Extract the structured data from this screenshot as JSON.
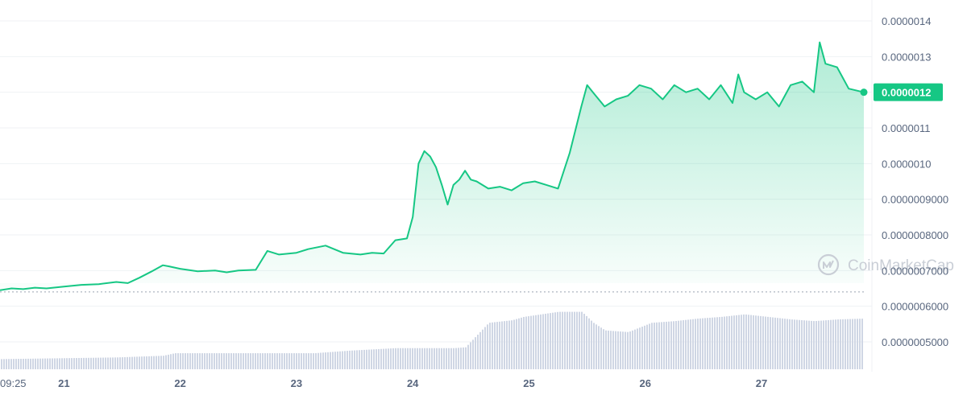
{
  "watermark": {
    "text": "CoinMarketCap",
    "icon": "coinmarketcap-logo-icon"
  },
  "colors": {
    "line": "#16c784",
    "area_top": "#16c784",
    "volume": "#cfd6e4",
    "grid": "#eff2f5",
    "axis_text": "#58667e",
    "badge_bg": "#16c784",
    "badge_text": "#ffffff",
    "reference_line": "#9aa3b2"
  },
  "chart_data": {
    "type": "line",
    "title": "",
    "xlabel": "",
    "ylabel": "",
    "grid": true,
    "y_axis": {
      "position": "right",
      "ticks": [
        "0.0000014",
        "0.0000013",
        "0.0000012",
        "0.0000011",
        "0.0000010",
        "0.0000009000",
        "0.0000008000",
        "0.0000007000",
        "0.0000006000",
        "0.0000005000"
      ],
      "tick_values": [
        1.4e-06,
        1.3e-06,
        1.2e-06,
        1.1e-06,
        1e-06,
        9e-07,
        8e-07,
        7e-07,
        6e-07,
        5e-07
      ],
      "ylim": [
        4.55e-07,
        1.43e-06
      ]
    },
    "x_axis": {
      "ticks": [
        "09:25",
        "21",
        "22",
        "23",
        "24",
        "25",
        "26",
        "27"
      ],
      "tick_positions_day": [
        20.0,
        20.55,
        21.55,
        22.55,
        23.55,
        24.55,
        25.55,
        26.55
      ],
      "xlim": [
        20.0,
        27.43
      ]
    },
    "current_price": {
      "label": "0.0000012",
      "value": 1.2e-06
    },
    "reference_line_value": 6.4e-07,
    "series": [
      {
        "type": "line",
        "x_day": [
          20.0,
          20.1,
          20.2,
          20.3,
          20.4,
          20.55,
          20.7,
          20.85,
          21.0,
          21.1,
          21.2,
          21.3,
          21.4,
          21.45,
          21.55,
          21.7,
          21.85,
          21.95,
          22.05,
          22.2,
          22.3,
          22.4,
          22.55,
          22.65,
          22.8,
          22.95,
          23.1,
          23.2,
          23.3,
          23.4,
          23.5,
          23.55,
          23.6,
          23.65,
          23.7,
          23.75,
          23.8,
          23.85,
          23.9,
          23.95,
          24.0,
          24.05,
          24.1,
          24.2,
          24.3,
          24.4,
          24.5,
          24.6,
          24.7,
          24.8,
          24.9,
          25.0,
          25.05,
          25.1,
          25.2,
          25.3,
          25.4,
          25.5,
          25.6,
          25.7,
          25.8,
          25.9,
          26.0,
          26.1,
          26.2,
          26.3,
          26.35,
          26.4,
          26.5,
          26.6,
          26.7,
          26.75,
          26.8,
          26.9,
          27.0,
          27.05,
          27.1,
          27.2,
          27.3,
          27.43
        ],
        "values": [
          6.45e-07,
          6.5e-07,
          6.48e-07,
          6.52e-07,
          6.5e-07,
          6.55e-07,
          6.6e-07,
          6.62e-07,
          6.68e-07,
          6.65e-07,
          6.8e-07,
          6.97e-07,
          7.15e-07,
          7.12e-07,
          7.05e-07,
          6.98e-07,
          7e-07,
          6.95e-07,
          7e-07,
          7.02e-07,
          7.55e-07,
          7.45e-07,
          7.5e-07,
          7.6e-07,
          7.7e-07,
          7.5e-07,
          7.45e-07,
          7.5e-07,
          7.48e-07,
          7.85e-07,
          7.9e-07,
          8.5e-07,
          1e-06,
          1.035e-06,
          1.02e-06,
          9.9e-07,
          9.4e-07,
          8.85e-07,
          9.4e-07,
          9.55e-07,
          9.8e-07,
          9.55e-07,
          9.5e-07,
          9.3e-07,
          9.35e-07,
          9.25e-07,
          9.45e-07,
          9.5e-07,
          9.4e-07,
          9.3e-07,
          1.03e-06,
          1.16e-06,
          1.22e-06,
          1.2e-06,
          1.16e-06,
          1.18e-06,
          1.19e-06,
          1.22e-06,
          1.21e-06,
          1.18e-06,
          1.22e-06,
          1.2e-06,
          1.21e-06,
          1.18e-06,
          1.22e-06,
          1.17e-06,
          1.25e-06,
          1.2e-06,
          1.18e-06,
          1.2e-06,
          1.16e-06,
          1.19e-06,
          1.22e-06,
          1.23e-06,
          1.2e-06,
          1.34e-06,
          1.28e-06,
          1.27e-06,
          1.21e-06,
          1.2e-06
        ]
      },
      {
        "type": "bar",
        "name": "",
        "note_level": "relative volume 0-1 (no axis printed)",
        "x_day": [
          20.0,
          20.5,
          21.0,
          21.4,
          21.5,
          22.0,
          22.7,
          23.0,
          23.4,
          23.45,
          23.9,
          24.0,
          24.2,
          24.4,
          24.5,
          24.8,
          24.9,
          25.0,
          25.1,
          25.2,
          25.4,
          25.6,
          25.8,
          26.0,
          26.2,
          26.4,
          26.6,
          26.8,
          27.0,
          27.2,
          27.43
        ],
        "values": [
          0.12,
          0.13,
          0.14,
          0.16,
          0.19,
          0.19,
          0.19,
          0.22,
          0.25,
          0.25,
          0.25,
          0.26,
          0.55,
          0.58,
          0.62,
          0.68,
          0.68,
          0.68,
          0.55,
          0.46,
          0.44,
          0.55,
          0.57,
          0.6,
          0.62,
          0.65,
          0.62,
          0.59,
          0.57,
          0.59,
          0.6
        ]
      }
    ]
  }
}
